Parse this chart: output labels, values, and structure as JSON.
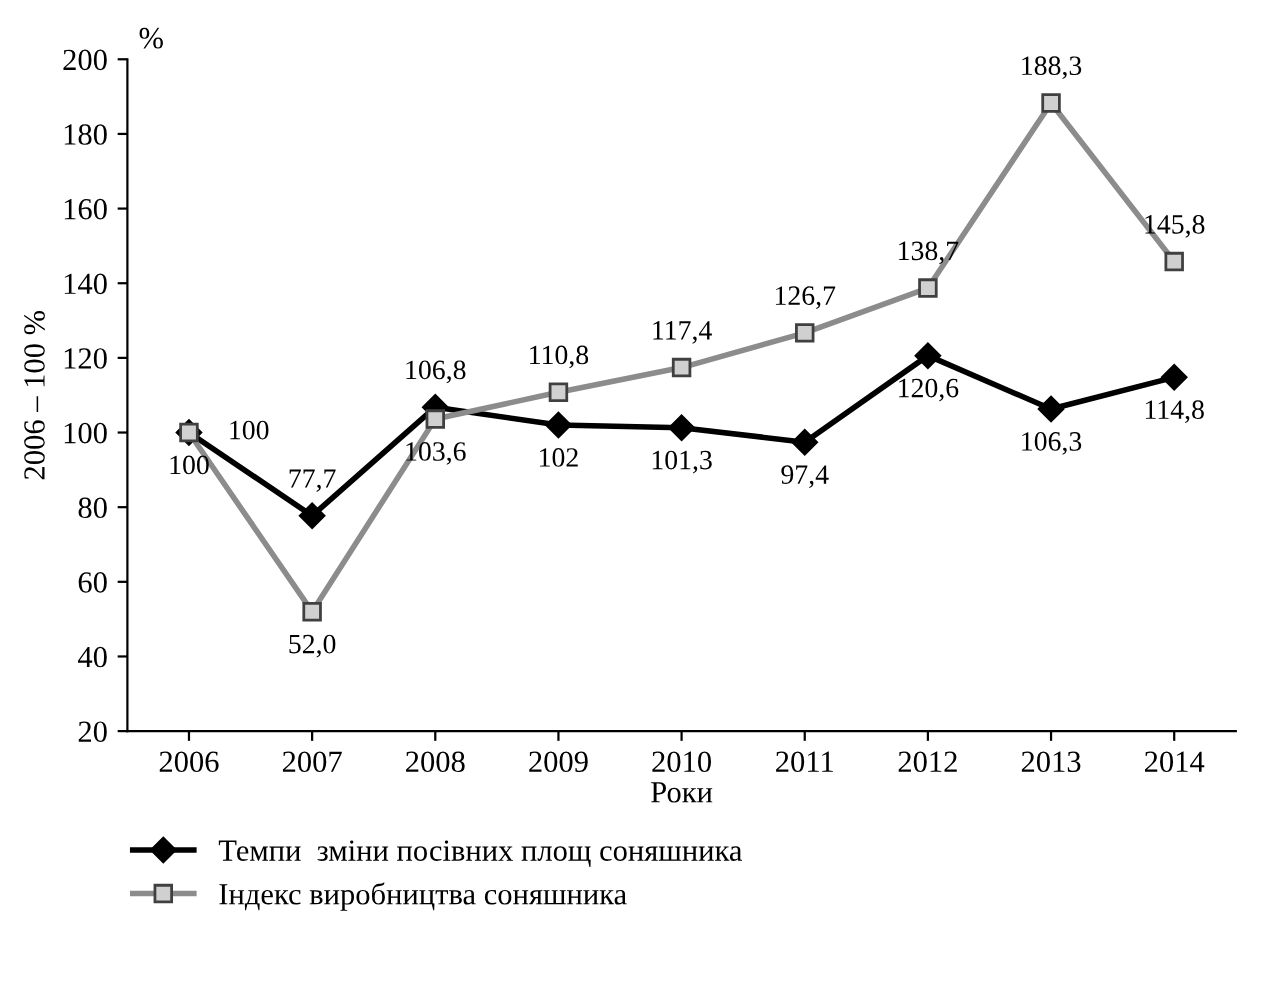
{
  "chart_data": {
    "type": "line",
    "ylabel": "2006 – 100 %",
    "xlabel": "Роки",
    "annotations": [
      "%"
    ],
    "categories": [
      "2006",
      "2007",
      "2008",
      "2009",
      "2010",
      "2011",
      "2012",
      "2013",
      "2014"
    ],
    "series": [
      {
        "name": "Темпи  зміни посівних площ соняшника",
        "color": "#000000",
        "marker": "diamond",
        "values": [
          100,
          77.7,
          106.8,
          102,
          101.3,
          97.4,
          120.6,
          106.3,
          114.8
        ],
        "value_labels": [
          "100",
          "77,7",
          "106,8",
          "102",
          "101,3",
          "97,4",
          "120,6",
          "106,3",
          "114,8"
        ]
      },
      {
        "name": "Індекс виробництва соняшника",
        "color": "#8c8c8c",
        "marker": "square",
        "values": [
          100,
          52.0,
          103.6,
          110.8,
          117.4,
          126.7,
          138.7,
          188.3,
          145.8
        ],
        "value_labels": [
          "100",
          "52,0",
          "103,6",
          "110,8",
          "117,4",
          "126,7",
          "138,7",
          "188,3",
          "145,8"
        ]
      }
    ],
    "ylim": [
      20,
      200
    ],
    "yticks": [
      20,
      40,
      60,
      80,
      100,
      120,
      140,
      160,
      180,
      200
    ],
    "grid": false,
    "legend": "bottom",
    "line_style": "solid"
  }
}
